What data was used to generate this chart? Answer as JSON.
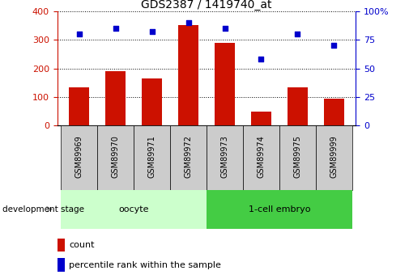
{
  "title": "GDS2387 / 1419740_at",
  "samples": [
    "GSM89969",
    "GSM89970",
    "GSM89971",
    "GSM89972",
    "GSM89973",
    "GSM89974",
    "GSM89975",
    "GSM89999"
  ],
  "counts": [
    135,
    190,
    165,
    350,
    290,
    50,
    135,
    95
  ],
  "percentiles": [
    80,
    85,
    82,
    90,
    85,
    58,
    80,
    70
  ],
  "bar_color": "#cc1100",
  "dot_color": "#0000cc",
  "left_ylim": [
    0,
    400
  ],
  "right_ylim": [
    0,
    100
  ],
  "left_yticks": [
    0,
    100,
    200,
    300,
    400
  ],
  "right_yticks": [
    0,
    25,
    50,
    75,
    100
  ],
  "right_yticklabels": [
    "0",
    "25",
    "50",
    "75",
    "100%"
  ],
  "groups": [
    {
      "label": "oocyte",
      "start": 0,
      "end": 3,
      "color": "#ccffcc"
    },
    {
      "label": "1-cell embryo",
      "start": 4,
      "end": 7,
      "color": "#44cc44"
    }
  ],
  "group_label": "development stage",
  "legend_count_label": "count",
  "legend_percentile_label": "percentile rank within the sample",
  "bg_color": "#ffffff",
  "tick_label_area_color": "#cccccc",
  "grid_color": "#000000",
  "title_fontsize": 10,
  "tick_fontsize": 8,
  "label_fontsize": 7
}
